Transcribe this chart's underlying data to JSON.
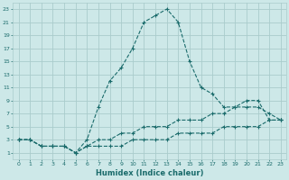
{
  "xlabel": "Humidex (Indice chaleur)",
  "background_color": "#cde8e8",
  "grid_color": "#aacccc",
  "line_color": "#1a6b6b",
  "x_main": [
    0,
    1,
    2,
    3,
    4,
    5,
    6,
    7,
    8,
    9,
    10,
    11,
    12,
    13,
    14,
    15,
    16,
    17,
    18,
    19,
    20,
    21,
    22,
    23
  ],
  "y_main": [
    3,
    3,
    2,
    2,
    2,
    1,
    3,
    8,
    12,
    14,
    17,
    21,
    22,
    23,
    21,
    15,
    11,
    10,
    8,
    8,
    9,
    9,
    6,
    6
  ],
  "x_line2": [
    0,
    1,
    2,
    3,
    4,
    5,
    6,
    7,
    8,
    9,
    10,
    11,
    12,
    13,
    14,
    15,
    16,
    17,
    18,
    19,
    20,
    21,
    22,
    23
  ],
  "y_line2": [
    3,
    3,
    2,
    2,
    2,
    1,
    2,
    3,
    3,
    4,
    4,
    5,
    5,
    5,
    6,
    6,
    6,
    7,
    7,
    8,
    8,
    8,
    7,
    6
  ],
  "x_line3": [
    0,
    1,
    2,
    3,
    4,
    5,
    6,
    7,
    8,
    9,
    10,
    11,
    12,
    13,
    14,
    15,
    16,
    17,
    18,
    19,
    20,
    21,
    22,
    23
  ],
  "y_line3": [
    3,
    3,
    2,
    2,
    2,
    1,
    2,
    2,
    2,
    2,
    3,
    3,
    3,
    3,
    4,
    4,
    4,
    4,
    5,
    5,
    5,
    5,
    6,
    6
  ],
  "xlim": [
    -0.5,
    23.5
  ],
  "ylim": [
    0,
    24
  ],
  "yticks": [
    1,
    3,
    5,
    7,
    9,
    11,
    13,
    15,
    17,
    19,
    21,
    23
  ],
  "xticks": [
    0,
    1,
    2,
    3,
    4,
    5,
    6,
    7,
    8,
    9,
    10,
    11,
    12,
    13,
    14,
    15,
    16,
    17,
    18,
    19,
    20,
    21,
    22,
    23
  ]
}
